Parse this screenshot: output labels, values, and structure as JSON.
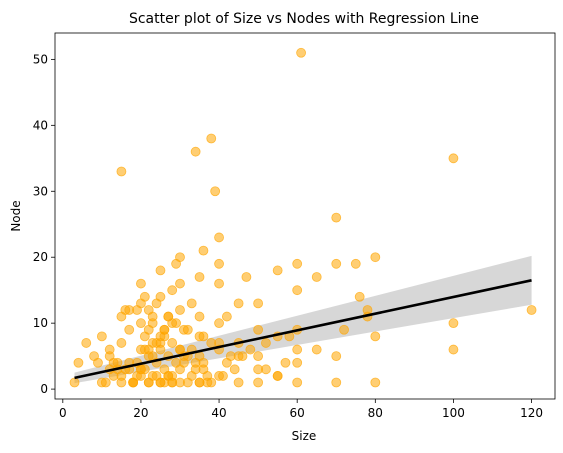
{
  "chart_data": {
    "type": "scatter",
    "title": "Scatter plot of Size vs Nodes with Regression Line",
    "xlabel": "Size",
    "ylabel": "Node",
    "xlim": [
      -2,
      126
    ],
    "ylim": [
      -1.5,
      54
    ],
    "xticks": [
      0,
      20,
      40,
      60,
      80,
      100,
      120
    ],
    "yticks": [
      0,
      10,
      20,
      30,
      40,
      50
    ],
    "grid": false,
    "point_color": "#FFA500",
    "line_color": "#000000",
    "band_color": "#D3D3D3",
    "regression": {
      "x": [
        3,
        120
      ],
      "y": [
        1.7,
        16.5
      ],
      "ci_lower": [
        0.9,
        12.8
      ],
      "ci_upper": [
        2.5,
        20.2
      ]
    },
    "series": [
      {
        "x": [
          3,
          4,
          6,
          8,
          10,
          10,
          12,
          12,
          13,
          14,
          15,
          15,
          15,
          16,
          17,
          17,
          18,
          19,
          20,
          20,
          20,
          20,
          20,
          21,
          21,
          22,
          22,
          22,
          22,
          23,
          23,
          23,
          24,
          25,
          25,
          25,
          25,
          25,
          26,
          26,
          27,
          27,
          27,
          28,
          28,
          28,
          29,
          30,
          30,
          30,
          30,
          30,
          31,
          32,
          33,
          33,
          34,
          35,
          35,
          35,
          35,
          36,
          36,
          36,
          38,
          38,
          38,
          39,
          40,
          40,
          40,
          40,
          40,
          40,
          42,
          42,
          43,
          45,
          45,
          45,
          47,
          48,
          50,
          50,
          50,
          50,
          52,
          52,
          55,
          55,
          55,
          57,
          58,
          60,
          60,
          60,
          60,
          60,
          61,
          65,
          65,
          70,
          70,
          70,
          70,
          72,
          75,
          76,
          78,
          78,
          80,
          80,
          80,
          100,
          100,
          100,
          120,
          15,
          18,
          20,
          22,
          24,
          25,
          26,
          28,
          30,
          32,
          35,
          37,
          12,
          13,
          14,
          16,
          17,
          19,
          21,
          23,
          24,
          26,
          27,
          29,
          31,
          33,
          34,
          36,
          37,
          41,
          44,
          46,
          9,
          11,
          28,
          30,
          32,
          34,
          22,
          25,
          20,
          18,
          27,
          24,
          29,
          31,
          35,
          40,
          45,
          50,
          55,
          60,
          21,
          23,
          19,
          26,
          28,
          15,
          17
        ],
        "y": [
          1,
          4,
          7,
          5,
          1,
          8,
          3,
          6,
          2,
          4,
          1,
          7,
          33,
          12,
          3,
          9,
          1,
          4,
          2,
          6,
          10,
          13,
          16,
          3,
          8,
          1,
          5,
          9,
          12,
          2,
          7,
          10,
          4,
          1,
          6,
          8,
          14,
          18,
          3,
          9,
          2,
          5,
          11,
          1,
          7,
          15,
          19,
          3,
          6,
          12,
          16,
          20,
          4,
          9,
          2,
          13,
          36,
          1,
          5,
          11,
          17,
          3,
          8,
          21,
          1,
          7,
          38,
          30,
          2,
          6,
          10,
          16,
          19,
          23,
          4,
          11,
          5,
          1,
          7,
          13,
          17,
          6,
          1,
          5,
          9,
          13,
          3,
          7,
          2,
          8,
          18,
          4,
          8,
          1,
          4,
          9,
          15,
          19,
          51,
          6,
          17,
          1,
          5,
          19,
          26,
          9,
          19,
          14,
          12,
          11,
          1,
          8,
          20,
          6,
          10,
          35,
          12,
          2,
          1,
          3,
          1,
          2,
          1,
          1,
          2,
          1,
          1,
          1,
          2,
          5,
          4,
          3,
          3,
          4,
          2,
          6,
          5,
          7,
          8,
          2,
          4,
          5,
          6,
          3,
          4,
          1,
          2,
          3,
          5,
          4,
          1,
          1,
          6,
          5,
          4,
          6,
          7,
          3,
          1,
          11,
          13,
          10,
          9,
          8,
          7,
          5,
          3,
          2,
          6,
          14,
          11,
          12,
          9,
          10,
          11,
          12
        ]
      }
    ]
  }
}
